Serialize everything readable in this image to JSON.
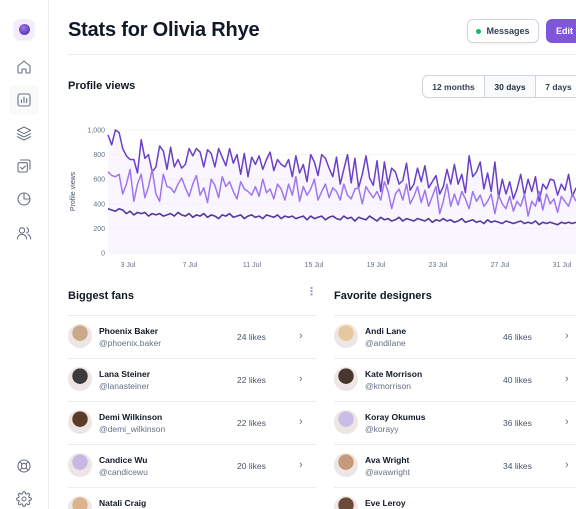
{
  "header": {
    "title": "Stats for Olivia Rhye",
    "messages_label": "Messages",
    "edit_label": "Edit"
  },
  "sidebar": {
    "items": [
      {
        "icon": "home-icon"
      },
      {
        "icon": "bar-chart-icon",
        "active": true
      },
      {
        "icon": "layers-icon"
      },
      {
        "icon": "check-square-icon"
      },
      {
        "icon": "pie-chart-icon"
      },
      {
        "icon": "users-icon"
      }
    ],
    "footer": [
      {
        "icon": "help-icon"
      },
      {
        "icon": "settings-icon"
      }
    ]
  },
  "profile_views": {
    "title": "Profile views",
    "ranges": [
      "12 months",
      "30 days",
      "7 days"
    ],
    "selected_range": "30 days"
  },
  "chart_data": {
    "type": "line",
    "ylabel": "Profile views",
    "ylim": [
      0,
      1000
    ],
    "yticks": [
      "0",
      "200",
      "400",
      "600",
      "800",
      "1,000"
    ],
    "xticks": [
      "3 Jul",
      "7 Jul",
      "11 Jul",
      "15 Jul",
      "19 Jul",
      "23 Jul",
      "27 Jul",
      "31 Jul"
    ],
    "grid": true,
    "colors": [
      "#6941c6",
      "#9e77ed",
      "#53389e"
    ],
    "series": [
      {
        "values": [
          960,
          880,
          1000,
          980,
          850,
          790,
          760,
          760,
          650,
          920,
          770,
          800,
          660,
          700,
          870,
          830,
          680,
          860,
          700,
          760,
          690,
          720,
          850,
          790,
          850,
          820,
          700,
          840,
          810,
          700,
          850,
          780,
          710,
          850,
          730,
          800,
          640,
          810,
          620,
          780,
          720,
          790,
          680,
          760,
          820,
          670,
          760,
          720,
          700,
          760,
          620,
          790,
          650,
          720,
          580,
          800,
          740,
          630,
          800,
          770,
          690,
          620,
          780,
          560,
          680,
          800,
          570,
          770,
          530,
          640,
          790,
          610,
          550,
          750,
          500,
          740,
          560,
          690,
          660,
          560,
          590,
          730,
          510,
          560,
          690,
          580,
          710,
          530,
          580,
          630,
          480,
          540,
          680,
          560,
          720,
          560,
          640,
          490,
          790,
          620,
          660,
          740,
          520,
          650,
          500,
          740,
          450,
          600,
          480,
          580,
          440,
          520,
          640,
          470,
          600,
          500,
          620,
          420,
          560,
          520,
          600,
          590,
          470,
          560,
          510,
          640,
          460,
          530
        ]
      },
      {
        "values": [
          660,
          630,
          620,
          640,
          480,
          560,
          680,
          420,
          560,
          640,
          450,
          540,
          680,
          480,
          420,
          640,
          540,
          530,
          490,
          560,
          610,
          530,
          460,
          560,
          630,
          470,
          530,
          410,
          600,
          550,
          450,
          620,
          540,
          580,
          500,
          440,
          580,
          520,
          500,
          470,
          540,
          460,
          600,
          490,
          520,
          440,
          560,
          520,
          430,
          560,
          470,
          620,
          420,
          540,
          470,
          520,
          600,
          430,
          500,
          560,
          450,
          530,
          500,
          430,
          560,
          470,
          440,
          520,
          530,
          400,
          540,
          490,
          450,
          500,
          430,
          580,
          500,
          360,
          480,
          520,
          430,
          560,
          400,
          460,
          540,
          410,
          510,
          380,
          460,
          540,
          320,
          420,
          560,
          380,
          480,
          390,
          500,
          440,
          360,
          500,
          420,
          470,
          380,
          420,
          480,
          320,
          470,
          400,
          360,
          460,
          340,
          420,
          380,
          480,
          300,
          420,
          380,
          500,
          350,
          480,
          400,
          440,
          330,
          460,
          420,
          380,
          480,
          420
        ]
      },
      {
        "values": [
          360,
          350,
          340,
          360,
          350,
          320,
          340,
          310,
          330,
          320,
          330,
          300,
          320,
          310,
          320,
          300,
          310,
          320,
          300,
          330,
          310,
          300,
          320,
          290,
          310,
          300,
          320,
          290,
          310,
          300,
          280,
          310,
          300,
          320,
          290,
          300,
          310,
          280,
          300,
          310,
          290,
          300,
          280,
          310,
          300,
          290,
          310,
          280,
          300,
          290,
          300,
          280,
          290,
          300,
          270,
          300,
          280,
          290,
          300,
          270,
          290,
          300,
          280,
          270,
          300,
          280,
          290,
          260,
          290,
          280,
          270,
          300,
          280,
          260,
          290,
          270,
          280,
          260,
          270,
          290,
          260,
          280,
          270,
          260,
          280,
          270,
          260,
          280,
          250,
          270,
          260,
          280,
          260,
          270,
          250,
          260,
          280,
          250,
          260,
          270,
          250,
          260,
          240,
          270,
          250,
          260,
          250,
          240,
          260,
          250,
          240,
          250,
          260,
          240,
          250,
          240,
          260,
          230,
          250,
          240,
          250,
          240,
          230,
          250,
          240,
          250,
          240,
          250
        ]
      }
    ]
  },
  "biggest_fans": {
    "title": "Biggest fans",
    "items": [
      {
        "name": "Phoenix Baker",
        "handle": "@phoenix.baker",
        "likes": "24 likes",
        "avatar_color": "#c9a98a"
      },
      {
        "name": "Lana Steiner",
        "handle": "@lanasteiner",
        "likes": "22 likes",
        "avatar_color": "#3d3a3d"
      },
      {
        "name": "Demi Wilkinson",
        "handle": "@demi_wilkinson",
        "likes": "22 likes",
        "avatar_color": "#5b3b2a"
      },
      {
        "name": "Candice Wu",
        "handle": "@candicewu",
        "likes": "20 likes",
        "avatar_color": "#c7b9e6"
      },
      {
        "name": "Natali Craig",
        "handle": "",
        "likes": "",
        "avatar_color": "#d9b48c"
      }
    ]
  },
  "favorite_designers": {
    "title": "Favorite designers",
    "items": [
      {
        "name": "Andi Lane",
        "handle": "@andilane",
        "likes": "46 likes",
        "avatar_color": "#e6c7a0"
      },
      {
        "name": "Kate Morrison",
        "handle": "@kmorrison",
        "likes": "40 likes",
        "avatar_color": "#4a3630"
      },
      {
        "name": "Koray Okumus",
        "handle": "@korayy",
        "likes": "36 likes",
        "avatar_color": "#c8bde6"
      },
      {
        "name": "Ava Wright",
        "handle": "@avawright",
        "likes": "34 likes",
        "avatar_color": "#c49a7a"
      },
      {
        "name": "Eve Leroy",
        "handle": "",
        "likes": "",
        "avatar_color": "#6b4a3a"
      }
    ]
  }
}
